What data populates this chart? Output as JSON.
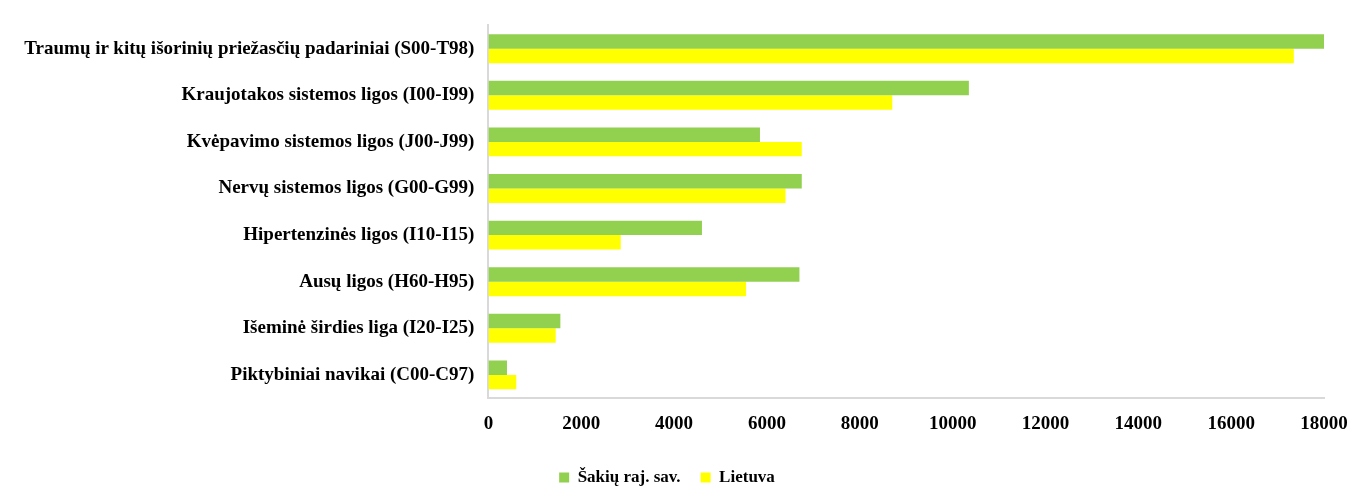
{
  "chart_data": {
    "type": "bar",
    "orientation": "horizontal",
    "categories": [
      "Traumų ir kitų išorinių priežasčių padariniai (S00-T98)",
      "Kraujotakos sistemos ligos (I00-I99)",
      "Kvėpavimo sistemos ligos (J00-J99)",
      "Nervų sistemos ligos (G00-G99)",
      "Hipertenzinės ligos (I10-I15)",
      "Ausų ligos (H60-H95)",
      "Išeminė širdies liga (I20-I25)",
      "Piktybiniai navikai (C00-C97)"
    ],
    "series": [
      {
        "name": "Šakių raj. sav.",
        "color": "#92d050",
        "values": [
          18000,
          10350,
          5850,
          6750,
          4600,
          6700,
          1550,
          400
        ]
      },
      {
        "name": "Lietuva",
        "color": "#ffff00",
        "values": [
          17350,
          8700,
          6750,
          6400,
          2850,
          5550,
          1450,
          600
        ]
      }
    ],
    "xlim": [
      0,
      18000
    ],
    "xticks": [
      0,
      2000,
      4000,
      6000,
      8000,
      10000,
      12000,
      14000,
      16000,
      18000
    ],
    "grid": false,
    "legend": "bottom"
  }
}
